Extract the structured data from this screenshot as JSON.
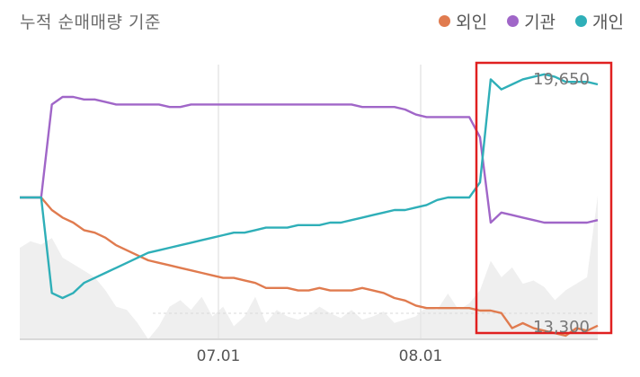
{
  "title": "누적 순매매량 기준",
  "legend": [
    {
      "name": "외인",
      "color": "#E07B4F"
    },
    {
      "name": "기관",
      "color": "#A066C8"
    },
    {
      "name": "개인",
      "color": "#2FAFB8"
    }
  ],
  "callouts": {
    "high": "19,650",
    "low": "13,300"
  },
  "chart_data": {
    "type": "line",
    "x_tick_labels": [
      "07.01",
      "08.01"
    ],
    "highlight_box": true,
    "series": [
      {
        "name": "외인",
        "color": "#E07B4F",
        "values": [
          0.0,
          0.0,
          0.0,
          -0.05,
          -0.08,
          -0.1,
          -0.13,
          -0.14,
          -0.16,
          -0.19,
          -0.21,
          -0.23,
          -0.25,
          -0.26,
          -0.27,
          -0.28,
          -0.29,
          -0.3,
          -0.31,
          -0.32,
          -0.32,
          -0.33,
          -0.34,
          -0.36,
          -0.36,
          -0.36,
          -0.37,
          -0.37,
          -0.36,
          -0.37,
          -0.37,
          -0.37,
          -0.36,
          -0.37,
          -0.38,
          -0.4,
          -0.41,
          -0.43,
          -0.44,
          -0.44,
          -0.44,
          -0.44,
          -0.44,
          -0.45,
          -0.45,
          -0.46,
          -0.52,
          -0.5,
          -0.52,
          -0.53,
          -0.54,
          -0.55,
          -0.52,
          -0.53,
          -0.51
        ]
      },
      {
        "name": "기관",
        "color": "#A066C8",
        "values": [
          0.0,
          0.0,
          0.0,
          0.37,
          0.4,
          0.4,
          0.39,
          0.39,
          0.38,
          0.37,
          0.37,
          0.37,
          0.37,
          0.37,
          0.36,
          0.36,
          0.37,
          0.37,
          0.37,
          0.37,
          0.37,
          0.37,
          0.37,
          0.37,
          0.37,
          0.37,
          0.37,
          0.37,
          0.37,
          0.37,
          0.37,
          0.37,
          0.36,
          0.36,
          0.36,
          0.36,
          0.35,
          0.33,
          0.32,
          0.32,
          0.32,
          0.32,
          0.32,
          0.24,
          -0.1,
          -0.06,
          -0.07,
          -0.08,
          -0.09,
          -0.1,
          -0.1,
          -0.1,
          -0.1,
          -0.1,
          -0.09
        ]
      },
      {
        "name": "개인",
        "color": "#2FAFB8",
        "values": [
          0.0,
          0.0,
          0.0,
          -0.38,
          -0.4,
          -0.38,
          -0.34,
          -0.32,
          -0.3,
          -0.28,
          -0.26,
          -0.24,
          -0.22,
          -0.21,
          -0.2,
          -0.19,
          -0.18,
          -0.17,
          -0.16,
          -0.15,
          -0.14,
          -0.14,
          -0.13,
          -0.12,
          -0.12,
          -0.12,
          -0.11,
          -0.11,
          -0.11,
          -0.1,
          -0.1,
          -0.09,
          -0.08,
          -0.07,
          -0.06,
          -0.05,
          -0.05,
          -0.04,
          -0.03,
          -0.01,
          0.0,
          0.0,
          0.0,
          0.06,
          0.47,
          0.43,
          0.45,
          0.47,
          0.48,
          0.49,
          0.48,
          0.46,
          0.46,
          0.46,
          0.45
        ]
      }
    ],
    "volume_values": [
      0.56,
      0.6,
      0.58,
      0.62,
      0.5,
      0.46,
      0.42,
      0.38,
      0.3,
      0.2,
      0.18,
      0.1,
      0.0,
      0.08,
      0.2,
      0.24,
      0.18,
      0.26,
      0.14,
      0.2,
      0.08,
      0.14,
      0.26,
      0.1,
      0.18,
      0.14,
      0.12,
      0.15,
      0.2,
      0.16,
      0.13,
      0.18,
      0.12,
      0.14,
      0.17,
      0.1,
      0.12,
      0.14,
      0.2,
      0.18,
      0.28,
      0.18,
      0.22,
      0.3,
      0.48,
      0.38,
      0.44,
      0.34,
      0.36,
      0.32,
      0.24,
      0.3,
      0.34,
      0.38,
      0.88
    ]
  }
}
